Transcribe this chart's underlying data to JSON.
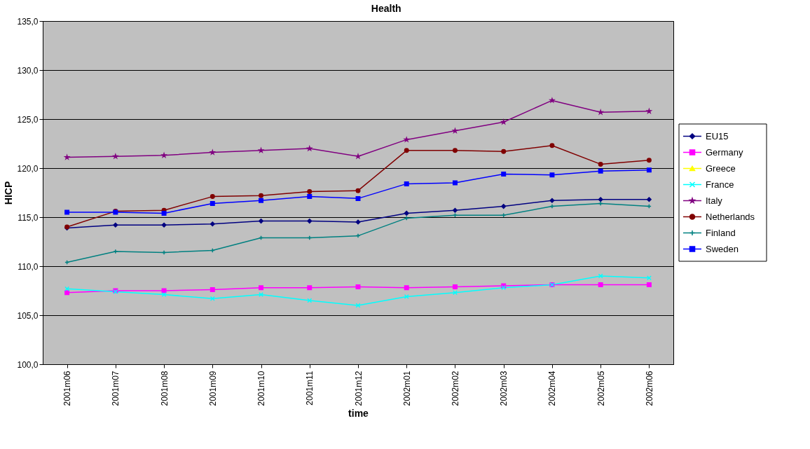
{
  "chart_data": {
    "type": "line",
    "title": "Health",
    "xlabel": "time",
    "ylabel": "HICP",
    "categories": [
      "2001m06",
      "2001m07",
      "2001m08",
      "2001m09",
      "2001m10",
      "2001m11",
      "2001m12",
      "2002m01",
      "2002m02",
      "2002m03",
      "2002m04",
      "2002m05",
      "2002m06"
    ],
    "series": [
      {
        "name": "EU15",
        "color": "#000080",
        "marker": "diamond",
        "values": [
          113.9,
          114.2,
          114.2,
          114.3,
          114.6,
          114.6,
          114.5,
          115.4,
          115.7,
          116.1,
          116.7,
          116.8,
          116.8
        ]
      },
      {
        "name": "Germany",
        "color": "#ff00ff",
        "marker": "square",
        "values": [
          107.3,
          107.5,
          107.5,
          107.6,
          107.8,
          107.8,
          107.9,
          107.8,
          107.9,
          108.0,
          108.1,
          108.1,
          108.1
        ]
      },
      {
        "name": "Greece",
        "color": "#ffff00",
        "marker": "triangle",
        "values": [
          null,
          null,
          null,
          null,
          null,
          null,
          null,
          null,
          null,
          null,
          null,
          null,
          null
        ]
      },
      {
        "name": "France",
        "color": "#00ffff",
        "marker": "cross",
        "values": [
          107.7,
          107.4,
          107.1,
          106.7,
          107.1,
          106.5,
          106.0,
          106.9,
          107.3,
          107.8,
          108.1,
          109.0,
          108.8
        ]
      },
      {
        "name": "Italy",
        "color": "#800080",
        "marker": "star",
        "values": [
          121.1,
          121.2,
          121.3,
          121.6,
          121.8,
          122.0,
          121.2,
          122.9,
          123.8,
          124.7,
          126.9,
          125.7,
          125.8
        ]
      },
      {
        "name": "Netherlands",
        "color": "#800000",
        "marker": "circle",
        "values": [
          114.0,
          115.6,
          115.7,
          117.1,
          117.2,
          117.6,
          117.7,
          121.8,
          121.8,
          121.7,
          122.3,
          120.4,
          120.8
        ]
      },
      {
        "name": "Finland",
        "color": "#008080",
        "marker": "plus",
        "values": [
          110.4,
          111.5,
          111.4,
          111.6,
          112.9,
          112.9,
          113.1,
          114.9,
          115.2,
          115.2,
          116.1,
          116.4,
          116.1
        ]
      },
      {
        "name": "Sweden",
        "color": "#0000ff",
        "marker": "square",
        "values": [
          115.5,
          115.5,
          115.4,
          116.4,
          116.7,
          117.1,
          116.9,
          118.4,
          118.5,
          119.4,
          119.3,
          119.7,
          119.8
        ]
      }
    ],
    "ylim": [
      100,
      135
    ],
    "yticks": [
      {
        "value": 100,
        "label": "100,0"
      },
      {
        "value": 105,
        "label": "105,0"
      },
      {
        "value": 110,
        "label": "110,0"
      },
      {
        "value": 115,
        "label": "115,0"
      },
      {
        "value": 120,
        "label": "120,0"
      },
      {
        "value": 125,
        "label": "125,0"
      },
      {
        "value": 130,
        "label": "130,0"
      },
      {
        "value": 135,
        "label": "135,0"
      }
    ],
    "grid": "y",
    "legend": "right"
  }
}
